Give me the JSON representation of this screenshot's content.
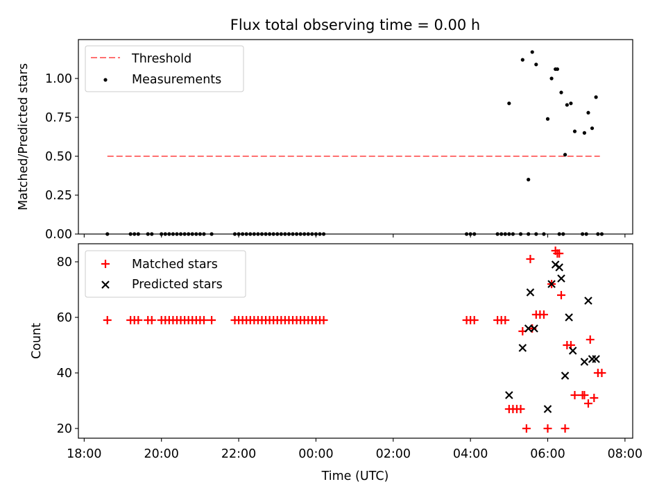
{
  "title": "Flux total observing time = 0.00 h",
  "colors": {
    "threshold": "#ff7070",
    "measurements": "#000000",
    "matched": "#ff0000",
    "predicted": "#000000",
    "axes": "#000000"
  },
  "chart_data": [
    {
      "type": "scatter",
      "title": "Flux total observing time = 0.00 h",
      "ylabel": "Matched/Predicted stars",
      "xlim": [
        -0.15,
        14.2
      ],
      "ylim": [
        0.0,
        1.25
      ],
      "yticks": [
        "0.00",
        "0.25",
        "0.50",
        "0.75",
        "1.00"
      ],
      "ytick_values": [
        0,
        0.25,
        0.5,
        0.75,
        1.0
      ],
      "grid": false,
      "legend": "top-left",
      "series": [
        {
          "name": "Threshold",
          "kind": "line",
          "style": "dashed",
          "x": [
            0.6,
            13.35
          ],
          "y": [
            0.5,
            0.5
          ]
        },
        {
          "name": "Measurements",
          "kind": "scatter",
          "x": [
            0.6,
            1.2,
            1.3,
            1.4,
            1.65,
            1.75,
            2.0,
            2.1,
            2.2,
            2.3,
            2.4,
            2.5,
            2.6,
            2.7,
            2.8,
            2.9,
            3.0,
            3.1,
            3.3,
            3.9,
            4.0,
            4.1,
            4.2,
            4.3,
            4.4,
            4.5,
            4.6,
            4.7,
            4.8,
            4.9,
            5.0,
            5.1,
            5.2,
            5.3,
            5.4,
            5.5,
            5.6,
            5.7,
            5.8,
            5.9,
            6.0,
            6.1,
            6.2,
            9.9,
            10.0,
            10.1,
            10.7,
            10.8,
            10.9,
            11.0,
            11.1,
            11.3,
            11.5,
            11.7,
            11.9,
            12.3,
            12.4,
            12.9,
            13.0,
            13.3,
            13.4,
            11.0,
            11.35,
            11.5,
            11.6,
            11.7,
            12.0,
            12.1,
            12.2,
            12.25,
            12.35,
            12.45,
            12.5,
            12.6,
            12.7,
            12.95,
            13.05,
            13.15,
            13.25
          ],
          "y": [
            0,
            0,
            0,
            0,
            0,
            0,
            0,
            0,
            0,
            0,
            0,
            0,
            0,
            0,
            0,
            0,
            0,
            0,
            0,
            0,
            0,
            0,
            0,
            0,
            0,
            0,
            0,
            0,
            0,
            0,
            0,
            0,
            0,
            0,
            0,
            0,
            0,
            0,
            0,
            0,
            0,
            0,
            0,
            0,
            0,
            0,
            0,
            0,
            0,
            0,
            0,
            0,
            0,
            0,
            0,
            0,
            0,
            0,
            0,
            0,
            0,
            0.84,
            1.12,
            0.35,
            1.17,
            1.09,
            0.74,
            1.0,
            1.06,
            1.06,
            0.91,
            0.51,
            0.83,
            0.84,
            0.66,
            0.65,
            0.78,
            0.68,
            0.88
          ]
        }
      ]
    },
    {
      "type": "scatter",
      "xlabel": "Time (UTC)",
      "ylabel": "Count",
      "xlim": [
        -0.15,
        14.2
      ],
      "ylim": [
        16.5,
        86.5
      ],
      "xticks": [
        "18:00",
        "20:00",
        "22:00",
        "00:00",
        "02:00",
        "04:00",
        "06:00",
        "08:00"
      ],
      "xtick_values": [
        0,
        2,
        4,
        6,
        8,
        10,
        12,
        14
      ],
      "yticks": [
        "20",
        "40",
        "60",
        "80"
      ],
      "ytick_values": [
        20,
        40,
        60,
        80
      ],
      "grid": false,
      "legend": "top-left",
      "series": [
        {
          "name": "Matched stars",
          "kind": "scatter",
          "marker": "+",
          "x": [
            0.6,
            1.2,
            1.3,
            1.4,
            1.65,
            1.75,
            2.0,
            2.1,
            2.2,
            2.3,
            2.4,
            2.5,
            2.6,
            2.7,
            2.8,
            2.9,
            3.0,
            3.1,
            3.3,
            3.9,
            4.0,
            4.1,
            4.2,
            4.3,
            4.4,
            4.5,
            4.6,
            4.7,
            4.8,
            4.9,
            5.0,
            5.1,
            5.2,
            5.3,
            5.4,
            5.5,
            5.6,
            5.7,
            5.8,
            5.9,
            6.0,
            6.1,
            6.2,
            9.9,
            10.0,
            10.1,
            10.7,
            10.8,
            10.9,
            11.0,
            11.1,
            11.2,
            11.3,
            11.35,
            11.45,
            11.55,
            11.6,
            11.7,
            11.8,
            11.9,
            12.0,
            12.1,
            12.2,
            12.25,
            12.3,
            12.35,
            12.45,
            12.5,
            12.6,
            12.7,
            12.9,
            12.95,
            13.05,
            13.1,
            13.2,
            13.3,
            13.4
          ],
          "y": [
            59,
            59,
            59,
            59,
            59,
            59,
            59,
            59,
            59,
            59,
            59,
            59,
            59,
            59,
            59,
            59,
            59,
            59,
            59,
            59,
            59,
            59,
            59,
            59,
            59,
            59,
            59,
            59,
            59,
            59,
            59,
            59,
            59,
            59,
            59,
            59,
            59,
            59,
            59,
            59,
            59,
            59,
            59,
            59,
            59,
            59,
            59,
            59,
            59,
            27,
            27,
            27,
            27,
            55,
            20,
            81,
            56,
            61,
            61,
            61,
            20,
            72,
            84,
            83,
            83,
            68,
            20,
            50,
            50,
            32,
            32,
            32,
            29,
            52,
            31,
            40,
            40
          ]
        },
        {
          "name": "Predicted stars",
          "kind": "scatter",
          "marker": "x",
          "x": [
            11.0,
            11.35,
            11.5,
            11.55,
            11.65,
            12.0,
            12.1,
            12.2,
            12.3,
            12.35,
            12.45,
            12.55,
            12.65,
            12.95,
            13.05,
            13.15,
            13.25
          ],
          "y": [
            32,
            49,
            56,
            69,
            56,
            27,
            72,
            79,
            78,
            74,
            39,
            60,
            48,
            44,
            66,
            45,
            45
          ]
        }
      ]
    }
  ]
}
